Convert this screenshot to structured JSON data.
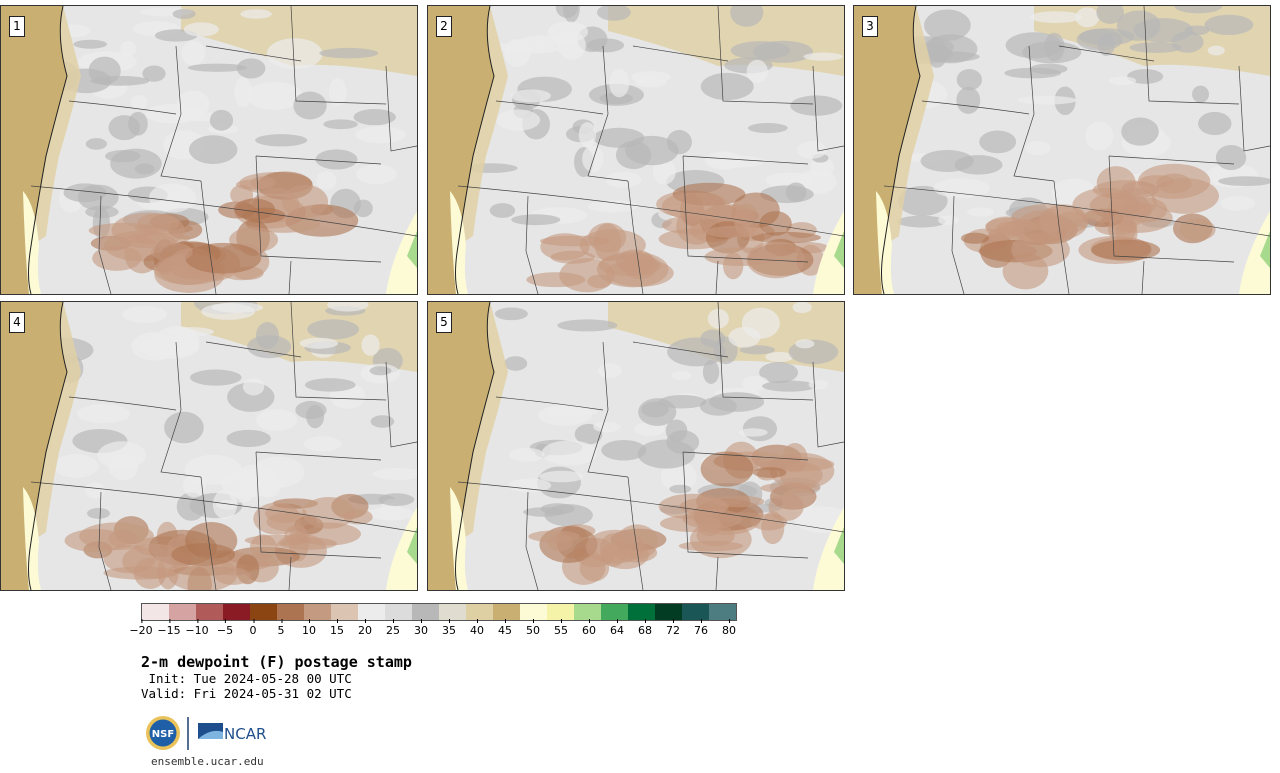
{
  "panels": [
    {
      "label": "1"
    },
    {
      "label": "2"
    },
    {
      "label": "3"
    },
    {
      "label": "4"
    },
    {
      "label": "5"
    }
  ],
  "colorbar": {
    "colors": [
      "#f3e6e6",
      "#d6a3a3",
      "#b05a5a",
      "#8a1a24",
      "#8a4513",
      "#ad7452",
      "#c49a80",
      "#dcc4b3",
      "#ececec",
      "#dcdcdc",
      "#b8b8b8",
      "#e0ddd0",
      "#dfd0a4",
      "#c9b072",
      "#fdfbd6",
      "#f4f3a8",
      "#a8da8d",
      "#43a95d",
      "#00703a",
      "#023c23",
      "#1b5656",
      "#4d7d80"
    ],
    "tick_labels": [
      "−20",
      "−15",
      "−10",
      "−5",
      "0",
      "5",
      "10",
      "15",
      "20",
      "25",
      "30",
      "35",
      "40",
      "45",
      "50",
      "55",
      "60",
      "64",
      "68",
      "72",
      "76",
      "80"
    ]
  },
  "title": "2-m dewpoint (F) postage stamp",
  "init": " Init: Tue 2024-05-28 00 UTC",
  "valid": "Valid: Fri 2024-05-31 02 UTC",
  "logos": {
    "nsf": "NSF",
    "ncar": "NCAR"
  },
  "url": "ensemble.ucar.edu",
  "map_colors": {
    "ocean": "#c9b072",
    "land_base": "#e6e6e6",
    "gray": "#b8b8b8",
    "light": "#ececec",
    "brown": "#c49a80",
    "brown_dark": "#ad7452",
    "tan": "#dfd0a4",
    "yellow": "#fdfbd6",
    "green": "#a8da8d"
  }
}
